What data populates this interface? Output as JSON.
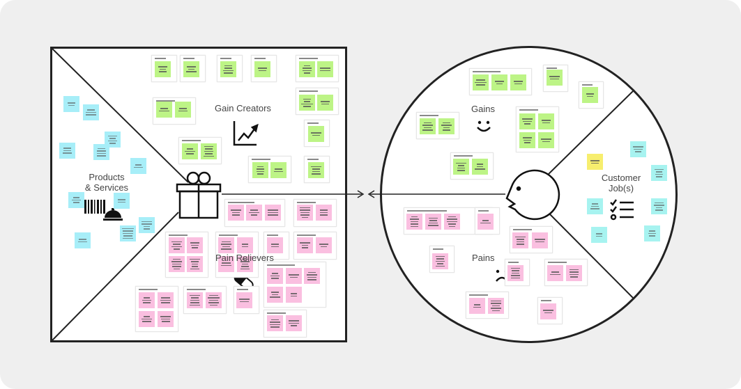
{
  "canvas": {
    "product_side": {
      "gain_creators_label": "Gain Creators",
      "products_services_label_1": "Products",
      "products_services_label_2": "& Services",
      "pain_relievers_label": "Pain Relievers"
    },
    "customer_side": {
      "gains_label": "Gains",
      "pains_label": "Pains",
      "customer_jobs_label_1": "Customer",
      "customer_jobs_label_2": "Job(s)"
    },
    "icons": [
      "gift-icon",
      "chart-up-icon",
      "barcode-icon",
      "service-bell-icon",
      "pill-icon",
      "smiley-icon",
      "sad-face-icon",
      "customer-face-icon",
      "checklist-icon",
      "arrow-left-icon"
    ]
  },
  "colors": {
    "gain_sticky": "#bdf486",
    "pain_sticky": "#fabfe0",
    "product_sticky": "#a7eef8",
    "job_sticky": "#a7f3f0",
    "highlight_sticky": "#f7ee6e",
    "outline": "#222222",
    "background": "#efefef"
  }
}
